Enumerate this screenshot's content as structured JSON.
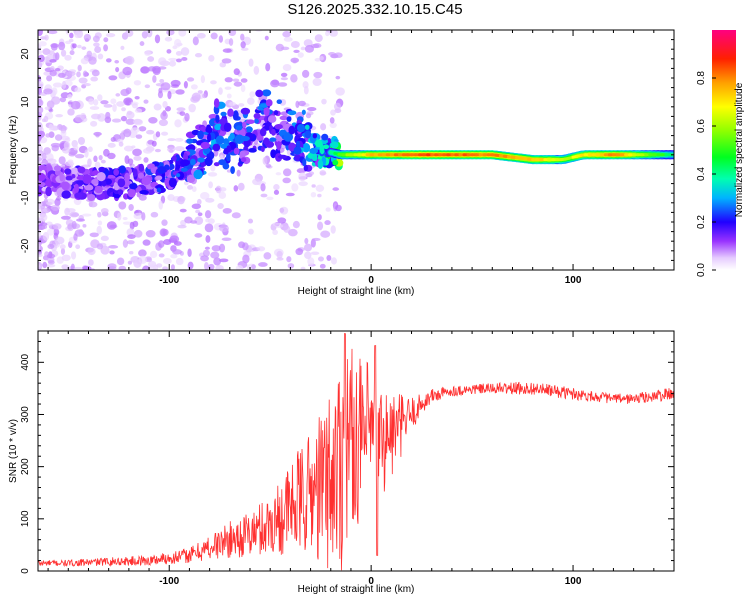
{
  "title": "S126.2025.332.10.15.C45",
  "chart_data": [
    {
      "type": "heatmap",
      "xlabel": "Height of straight line (km)",
      "ylabel": "Frequency (Hz)",
      "xlim": [
        -165,
        150
      ],
      "ylim": [
        -25,
        25
      ],
      "xticks": [
        -100,
        0,
        100
      ],
      "yticks": [
        -20,
        -10,
        0,
        10,
        20
      ],
      "colorbar": {
        "label": "Normalized spectral amplitude",
        "range": [
          0.0,
          1.0
        ],
        "ticks": [
          "0.0",
          "0.2",
          "0.4",
          "0.6",
          "0.8"
        ],
        "tick_values": [
          0.0,
          0.2,
          0.4,
          0.6,
          0.8
        ],
        "colormap": [
          "#ffffff",
          "#d9b3ff",
          "#7a00ff",
          "#0000ff",
          "#00e5ff",
          "#00ff40",
          "#c8ff00",
          "#ffe000",
          "#ff8000",
          "#ff0000",
          "#ff0080"
        ]
      },
      "ridge": [
        {
          "x": -165,
          "f": -6,
          "amp": 0.12
        },
        {
          "x": -145,
          "f": -7,
          "amp": 0.15
        },
        {
          "x": -120,
          "f": -7,
          "amp": 0.18
        },
        {
          "x": -100,
          "f": -5,
          "amp": 0.2
        },
        {
          "x": -85,
          "f": -2,
          "amp": 0.22
        },
        {
          "x": -75,
          "f": 2,
          "amp": 0.25
        },
        {
          "x": -65,
          "f": 0,
          "amp": 0.2
        },
        {
          "x": -55,
          "f": 4,
          "amp": 0.22
        },
        {
          "x": -45,
          "f": 2,
          "amp": 0.2
        },
        {
          "x": -35,
          "f": 0,
          "amp": 0.25
        },
        {
          "x": -25,
          "f": 0,
          "amp": 0.3
        },
        {
          "x": -15,
          "f": -1,
          "amp": 0.55
        },
        {
          "x": 0,
          "f": -1,
          "amp": 0.75
        },
        {
          "x": 25,
          "f": -1,
          "amp": 0.85
        },
        {
          "x": 60,
          "f": -1,
          "amp": 0.8
        },
        {
          "x": 80,
          "f": -2,
          "amp": 0.75
        },
        {
          "x": 95,
          "f": -2,
          "amp": 0.6
        },
        {
          "x": 105,
          "f": -1,
          "amp": 0.7
        },
        {
          "x": 120,
          "f": -1,
          "amp": 0.8
        },
        {
          "x": 150,
          "f": -1,
          "amp": 0.4
        }
      ]
    },
    {
      "type": "line",
      "xlabel": "Height of straight line (km)",
      "ylabel": "SNR (10 * v/v)",
      "xlim": [
        -165,
        150
      ],
      "ylim": [
        0,
        460
      ],
      "xticks": [
        -100,
        0,
        100
      ],
      "yticks": [
        0,
        100,
        200,
        300,
        400
      ],
      "color": "#ff3030",
      "series": [
        {
          "name": "SNR",
          "x": [
            -165,
            -150,
            -130,
            -110,
            -90,
            -80,
            -70,
            -60,
            -50,
            -40,
            -30,
            -25,
            -20,
            -15,
            -12,
            -10,
            -8,
            -5,
            -3,
            0,
            5,
            10,
            15,
            20,
            25,
            30,
            40,
            50,
            60,
            70,
            80,
            90,
            100,
            110,
            120,
            130,
            140,
            150
          ],
          "values": [
            15,
            15,
            18,
            20,
            30,
            45,
            60,
            70,
            90,
            120,
            150,
            160,
            180,
            210,
            240,
            260,
            250,
            250,
            255,
            260,
            250,
            260,
            280,
            300,
            320,
            335,
            345,
            348,
            350,
            350,
            350,
            345,
            340,
            335,
            330,
            330,
            335,
            340
          ],
          "noise": [
            6,
            6,
            8,
            10,
            15,
            25,
            35,
            45,
            60,
            90,
            120,
            150,
            180,
            220,
            200,
            180,
            160,
            160,
            150,
            140,
            110,
            90,
            60,
            35,
            20,
            15,
            10,
            10,
            10,
            12,
            12,
            12,
            12,
            10,
            10,
            10,
            12,
            12
          ]
        }
      ]
    }
  ]
}
